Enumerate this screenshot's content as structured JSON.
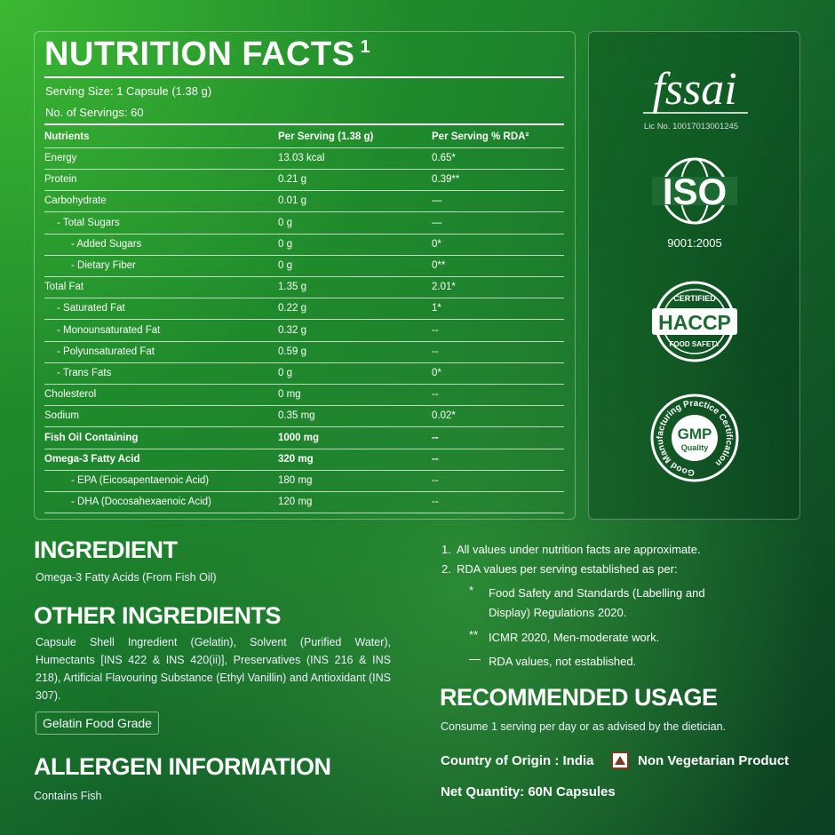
{
  "nutrition": {
    "title": "NUTRITION FACTS",
    "title_note": "1",
    "serving_size": "Serving Size: 1 Capsule (1.38 g)",
    "servings": "No. of Servings: 60",
    "headers": [
      "Nutrients",
      "Per Serving (1.38 g)",
      "Per Serving % RDA²"
    ],
    "rows": [
      {
        "cells": [
          "Energy",
          "13.03 kcal",
          "0.65*"
        ],
        "indent": 0,
        "bold": false
      },
      {
        "cells": [
          "Protein",
          "0.21 g",
          "0.39**"
        ],
        "indent": 0,
        "bold": false
      },
      {
        "cells": [
          "Carbohydrate",
          "0.01 g",
          "—"
        ],
        "indent": 0,
        "bold": false
      },
      {
        "cells": [
          "- Total Sugars",
          "0 g",
          "—"
        ],
        "indent": 1,
        "bold": false
      },
      {
        "cells": [
          "- Added Sugars",
          "0 g",
          "0*"
        ],
        "indent": 2,
        "bold": false
      },
      {
        "cells": [
          "- Dietary Fiber",
          "0 g",
          "0**"
        ],
        "indent": 2,
        "bold": false
      },
      {
        "cells": [
          "Total Fat",
          "1.35 g",
          "2.01*"
        ],
        "indent": 0,
        "bold": false
      },
      {
        "cells": [
          "- Saturated Fat",
          "0.22 g",
          "1*"
        ],
        "indent": 1,
        "bold": false
      },
      {
        "cells": [
          "- Monounsaturated Fat",
          "0.32 g",
          "--"
        ],
        "indent": 1,
        "bold": false
      },
      {
        "cells": [
          "- Polyunsaturated Fat",
          "0.59 g",
          "--"
        ],
        "indent": 1,
        "bold": false
      },
      {
        "cells": [
          "- Trans Fats",
          "0 g",
          "0*"
        ],
        "indent": 1,
        "bold": false
      },
      {
        "cells": [
          "Cholesterol",
          "0 mg",
          "--"
        ],
        "indent": 0,
        "bold": false
      },
      {
        "cells": [
          "Sodium",
          "0.35 mg",
          "0.02*"
        ],
        "indent": 0,
        "bold": false
      },
      {
        "cells": [
          "Fish Oil Containing",
          "1000 mg",
          "--"
        ],
        "indent": 0,
        "bold": true
      },
      {
        "cells": [
          "Omega-3 Fatty Acid",
          "320 mg",
          "--"
        ],
        "indent": 0,
        "bold": true
      },
      {
        "cells": [
          "- EPA (Eicosapentaenoic Acid)",
          "180 mg",
          "--"
        ],
        "indent": 2,
        "bold": false
      },
      {
        "cells": [
          "- DHA (Docosahexaenoic Acid)",
          "120 mg",
          "--"
        ],
        "indent": 2,
        "bold": false
      }
    ]
  },
  "certifications": {
    "fssai": "fssai",
    "fssai_license": "Lic No. 10017013001245",
    "iso": "ISO",
    "iso_number": "9001:2005",
    "haccp_top": "CERTIFIED",
    "haccp": "HACCP",
    "haccp_bottom": "FOOD SAFETY",
    "gmp": "GMP",
    "gmp_sub": "Quality",
    "gmp_ring": "Good Manufacturing Practice Certification"
  },
  "ingredient": {
    "title": "INGREDIENT",
    "text": "Omega-3 Fatty Acids (From Fish Oil)"
  },
  "other_ingredients": {
    "title": "OTHER INGREDIENTS",
    "text": "Capsule Shell Ingredient (Gelatin), Solvent (Purified Water), Humectants [INS 422 & INS 420(ii)], Preservatives (INS 216 & INS 218), Artificial Flavouring Substance (Ethyl Vanillin) and Antioxidant (INS 307).",
    "badge": "Gelatin Food Grade"
  },
  "allergen": {
    "title": "ALLERGEN INFORMATION",
    "text": "Contains Fish"
  },
  "notes": {
    "items": [
      {
        "marker": "1.",
        "text": "All values under nutrition facts are approximate."
      },
      {
        "marker": "2.",
        "text": "RDA values per serving established as per:"
      }
    ],
    "sub_items": [
      {
        "marker": "*",
        "text": "Food Safety and Standards (Labelling and Display) Regulations 2020."
      },
      {
        "marker": "**",
        "text": "ICMR 2020, Men-moderate work."
      },
      {
        "marker": "—",
        "text": "RDA values, not established."
      }
    ]
  },
  "usage": {
    "title": "RECOMMENDED USAGE",
    "text": "Consume 1 serving per day or as advised by the dietician.",
    "origin": "Country of Origin : India",
    "diet": "Non Vegetarian Product",
    "quantity": "Net Quantity: 60N Capsules"
  }
}
